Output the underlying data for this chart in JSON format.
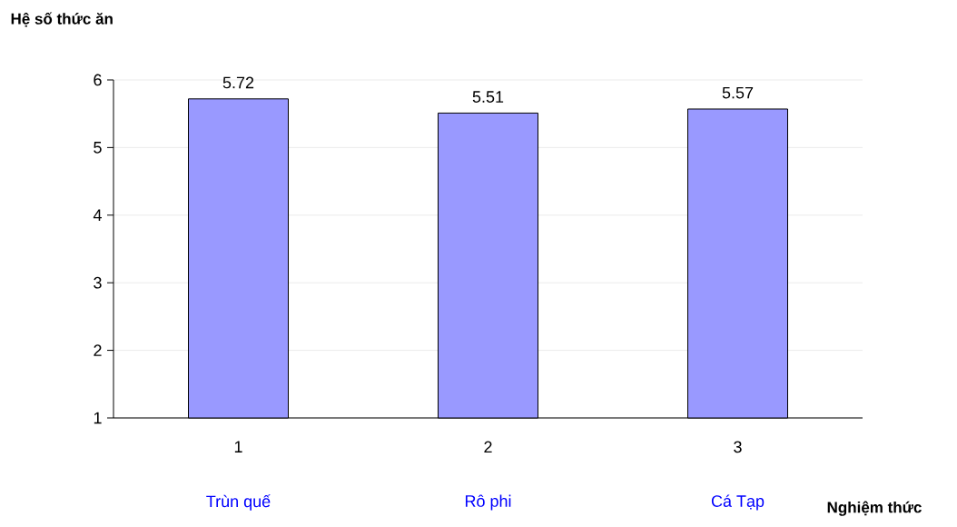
{
  "chart_data": {
    "type": "bar",
    "xlabel": "Nghiệm thức",
    "ylabel": "Hệ số thức ăn",
    "categories": [
      "1",
      "2",
      "3"
    ],
    "values": [
      5.72,
      5.51,
      5.57
    ],
    "color": "#9999ff",
    "ylim": [
      1,
      6
    ],
    "yticks": [
      1,
      2,
      3,
      4,
      5,
      6
    ],
    "grid": "y",
    "data_labels": true,
    "annotations": [
      "Trùn quế",
      "Rô phi",
      "Cá Tạp"
    ]
  }
}
